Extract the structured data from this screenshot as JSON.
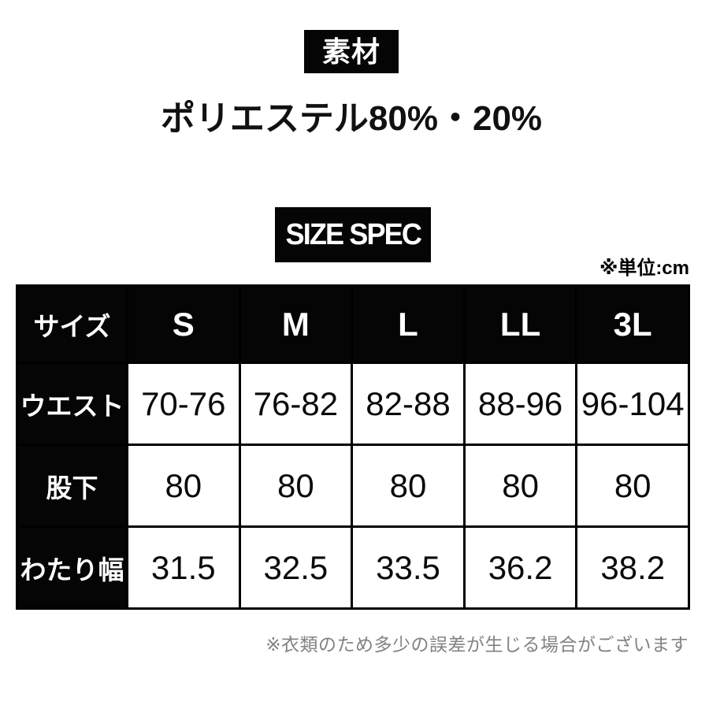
{
  "material_section": {
    "heading": "素材",
    "composition": "ポリエステル80%・20%"
  },
  "size_section": {
    "heading": "SIZE SPEC",
    "unit_note": "※単位:cm",
    "table": {
      "corner_label": "サイズ",
      "columns": [
        "S",
        "M",
        "L",
        "LL",
        "3L"
      ],
      "rows": [
        {
          "label": "ウエスト",
          "values": [
            "70-76",
            "76-82",
            "82-88",
            "88-96",
            "96-104"
          ]
        },
        {
          "label": "股下",
          "values": [
            "80",
            "80",
            "80",
            "80",
            "80"
          ]
        },
        {
          "label": "わたり幅",
          "values": [
            "31.5",
            "32.5",
            "33.5",
            "36.2",
            "38.2"
          ]
        }
      ]
    },
    "disclaimer": "※衣類のため多少の誤差が生じる場合がございます"
  },
  "colors": {
    "background": "#ffffff",
    "block_black": "#050505",
    "heading_text": "#ffffff",
    "body_text": "#000000",
    "disclaimer_text": "#828282"
  }
}
